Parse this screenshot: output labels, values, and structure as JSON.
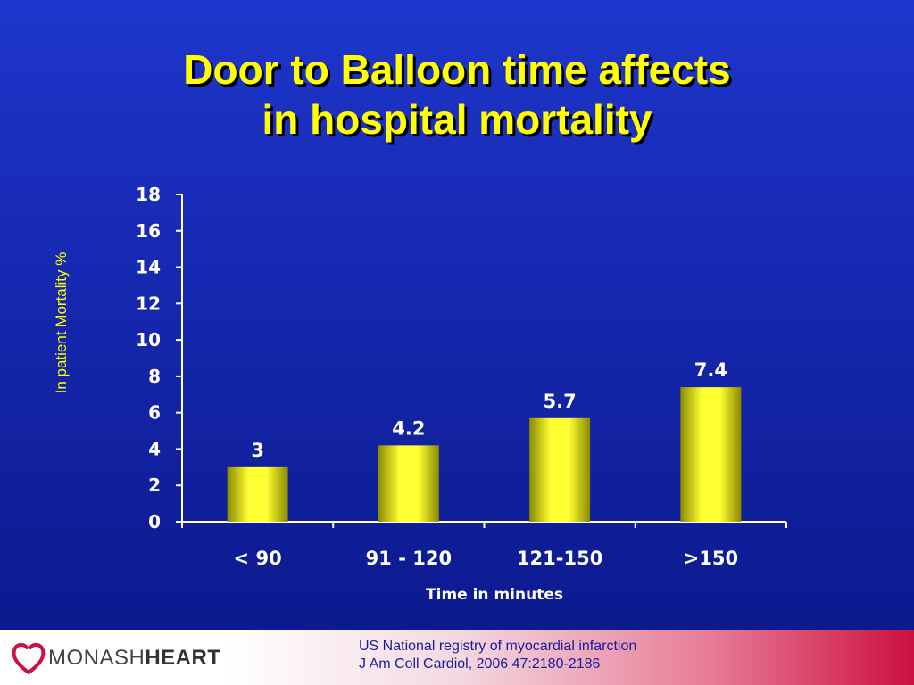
{
  "title": {
    "line1": "Door to Balloon time affects",
    "line2": "in hospital mortality"
  },
  "footer": {
    "logo_text_light": "MONASH",
    "logo_text_bold": "HEART",
    "citation_line1": "US National registry of myocardial infarction",
    "citation_line2": "J Am Coll Cardiol, 2006 47:2180-2186"
  },
  "colors": {
    "title": "#ffff00",
    "bars": "#ffff00",
    "text": "#ffffff",
    "background": "#1628b0"
  },
  "chart_data": {
    "type": "bar",
    "categories": [
      "< 90",
      "91 - 120",
      "121-150",
      ">150"
    ],
    "values": [
      3,
      4.2,
      5.7,
      7.4
    ],
    "data_labels": [
      "3",
      "4.2",
      "5.7",
      "7.4"
    ],
    "xlabel": "Time in minutes",
    "ylabel": "In patient Mortality %",
    "ylim": [
      0,
      18
    ],
    "yticks": [
      0,
      2,
      4,
      6,
      8,
      10,
      12,
      14,
      16,
      18
    ],
    "grid": false,
    "legend": "none"
  }
}
